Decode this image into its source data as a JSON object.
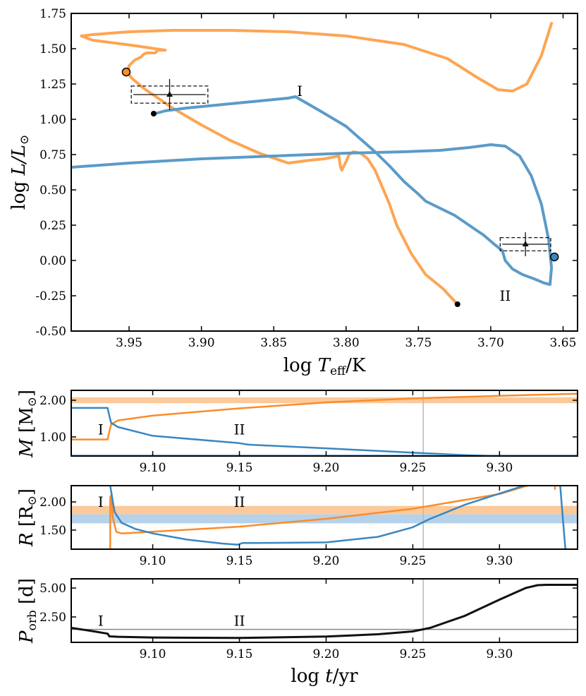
{
  "colors": {
    "orange": "#fa8c2a",
    "orange_track": "#fda553",
    "blue": "#3a87c0",
    "blue_track": "#5b9bc8",
    "orange_band": "#fcc99a",
    "blue_band": "#b6d1ea",
    "black": "#111111",
    "gray_line": "#b8b8b8"
  },
  "chart_data": [
    {
      "type": "line",
      "title": "",
      "xlabel": "log T_eff/K",
      "xlabel_parts": {
        "pre": "log ",
        "var": "T",
        "sub": "eff",
        "post": "/K"
      },
      "ylabel": "log L/L_sun",
      "ylabel_parts": {
        "pre": "log ",
        "var": "L/L",
        "sym": "⊙"
      },
      "xlim": [
        3.99,
        3.64
      ],
      "ylim": [
        -0.5,
        1.75
      ],
      "xticks": [
        3.95,
        3.9,
        3.85,
        3.8,
        3.75,
        3.7,
        3.65
      ],
      "xtick_labels": [
        "3.95",
        "3.90",
        "3.85",
        "3.80",
        "3.75",
        "3.70",
        "3.65"
      ],
      "yticks": [
        -0.5,
        -0.25,
        0.0,
        0.25,
        0.5,
        0.75,
        1.0,
        1.25,
        1.5,
        1.75
      ],
      "ytick_labels": [
        "-0.50",
        "-0.25",
        "0.00",
        "0.25",
        "0.50",
        "0.75",
        "1.00",
        "1.25",
        "1.50",
        "1.75"
      ],
      "series": [
        {
          "name": "orange track",
          "x": [
            3.723,
            3.733,
            3.745,
            3.755,
            3.765,
            3.77,
            3.775,
            3.78,
            3.785,
            3.79,
            3.795,
            3.798,
            3.8,
            3.802,
            3.803,
            3.804,
            3.805,
            3.815,
            3.825,
            3.84,
            3.86,
            3.88,
            3.9,
            3.92,
            3.94,
            3.948,
            3.951,
            3.95,
            3.946,
            3.942,
            3.94,
            3.938,
            3.932,
            3.93,
            3.925,
            3.932,
            3.945,
            3.96,
            3.975,
            3.983,
            3.975,
            3.95,
            3.92,
            3.88,
            3.84,
            3.8,
            3.76,
            3.73,
            3.71,
            3.695,
            3.685,
            3.675,
            3.665,
            3.658
          ],
          "y": [
            -0.31,
            -0.2,
            -0.1,
            0.05,
            0.25,
            0.4,
            0.52,
            0.64,
            0.72,
            0.76,
            0.77,
            0.75,
            0.7,
            0.66,
            0.64,
            0.67,
            0.74,
            0.72,
            0.71,
            0.69,
            0.76,
            0.85,
            0.96,
            1.08,
            1.22,
            1.29,
            1.33,
            1.38,
            1.42,
            1.44,
            1.46,
            1.47,
            1.47,
            1.49,
            1.49,
            1.5,
            1.52,
            1.54,
            1.56,
            1.59,
            1.6,
            1.62,
            1.63,
            1.63,
            1.62,
            1.59,
            1.53,
            1.43,
            1.3,
            1.21,
            1.2,
            1.25,
            1.45,
            1.68
          ]
        },
        {
          "name": "blue track",
          "x": [
            3.932,
            3.925,
            3.91,
            3.89,
            3.87,
            3.85,
            3.84,
            3.835,
            3.818,
            3.8,
            3.79,
            3.78,
            3.77,
            3.76,
            3.75,
            3.745,
            3.735,
            3.725,
            3.715,
            3.705,
            3.697,
            3.692,
            3.69,
            3.685,
            3.678,
            3.67,
            3.663,
            3.659,
            3.658,
            3.66,
            3.665,
            3.672,
            3.68,
            3.69,
            3.7,
            3.715,
            3.735,
            3.76,
            3.8,
            3.85,
            3.9,
            3.95,
            3.99
          ],
          "y": [
            1.04,
            1.06,
            1.08,
            1.1,
            1.12,
            1.14,
            1.15,
            1.16,
            1.06,
            0.95,
            0.86,
            0.77,
            0.67,
            0.56,
            0.47,
            0.42,
            0.37,
            0.32,
            0.25,
            0.18,
            0.11,
            0.07,
            0.0,
            -0.06,
            -0.1,
            -0.13,
            -0.16,
            -0.17,
            -0.05,
            0.15,
            0.4,
            0.6,
            0.74,
            0.81,
            0.82,
            0.8,
            0.78,
            0.77,
            0.76,
            0.74,
            0.72,
            0.69,
            0.66
          ]
        }
      ],
      "endpoint_markers": [
        {
          "x": 3.952,
          "y": 1.335,
          "type": "orange circle"
        },
        {
          "x": 3.656,
          "y": 0.025,
          "type": "blue circle"
        },
        {
          "x": 3.933,
          "y": 1.04,
          "type": "black dot"
        },
        {
          "x": 3.723,
          "y": -0.31,
          "type": "black dot"
        }
      ],
      "observations": [
        {
          "x": 3.922,
          "y": 1.175,
          "xerr": 0.025,
          "yerr": 0.11
        },
        {
          "x": 3.676,
          "y": 0.115,
          "xerr": 0.016,
          "yerr": 0.085
        }
      ],
      "annotations": [
        {
          "text": "I",
          "x": 3.832,
          "y": 1.2
        },
        {
          "text": "II",
          "x": 3.69,
          "y": -0.25
        }
      ]
    },
    {
      "type": "line",
      "xlabel": "",
      "ylabel": "M [M_sun]",
      "ylabel_parts": {
        "var": "M",
        "unit": "[M",
        "sym": "⊙",
        "close": "]"
      },
      "xlim": [
        9.053,
        9.345
      ],
      "ylim": [
        0.48,
        2.27
      ],
      "xticks": [
        9.1,
        9.15,
        9.2,
        9.25,
        9.3
      ],
      "xtick_labels": [
        "9.10",
        "9.15",
        "9.20",
        "9.25",
        "9.30"
      ],
      "yticks": [
        1.0,
        2.0
      ],
      "ytick_labels": [
        "1.00",
        "2.00"
      ],
      "bands": [
        {
          "color": "orange",
          "y0": 1.92,
          "y1": 2.08
        },
        {
          "color": "blue",
          "y0": 0.38,
          "y1": 0.53
        }
      ],
      "vline": 9.256,
      "series": [
        {
          "name": "orange",
          "x": [
            9.053,
            9.074,
            9.075,
            9.076,
            9.08,
            9.1,
            9.15,
            9.2,
            9.25,
            9.3,
            9.345
          ],
          "y": [
            0.93,
            0.93,
            1.15,
            1.34,
            1.45,
            1.58,
            1.78,
            1.94,
            2.05,
            2.12,
            2.18
          ]
        },
        {
          "name": "blue",
          "x": [
            9.053,
            9.074,
            9.075,
            9.076,
            9.08,
            9.1,
            9.15,
            9.155,
            9.2,
            9.25,
            9.3,
            9.345
          ],
          "y": [
            1.79,
            1.79,
            1.57,
            1.38,
            1.27,
            1.03,
            0.83,
            0.79,
            0.69,
            0.57,
            0.46,
            0.42
          ]
        }
      ],
      "annotations": [
        {
          "text": "I",
          "x": 9.07,
          "y": 1.2
        },
        {
          "text": "II",
          "x": 9.15,
          "y": 1.2
        }
      ]
    },
    {
      "type": "line",
      "xlabel": "",
      "ylabel": "R [R_sun]",
      "ylabel_parts": {
        "var": "R",
        "unit": "[R",
        "sym": "⊙",
        "close": "]"
      },
      "xlim": [
        9.053,
        9.345
      ],
      "ylim": [
        1.16,
        2.29
      ],
      "xticks": [
        9.1,
        9.15,
        9.2,
        9.25,
        9.3
      ],
      "xtick_labels": [
        "9.10",
        "9.15",
        "9.20",
        "9.25",
        "9.30"
      ],
      "yticks": [
        1.5,
        2.0
      ],
      "ytick_labels": [
        "1.50",
        "2.00"
      ],
      "bands": [
        {
          "color": "orange",
          "y0": 1.78,
          "y1": 1.93
        },
        {
          "color": "blue",
          "y0": 1.62,
          "y1": 1.78
        }
      ],
      "vline": 9.256,
      "series": [
        {
          "name": "orange",
          "x": [
            9.0755,
            9.0755,
            9.076,
            9.077,
            9.079,
            9.082,
            9.1,
            9.15,
            9.2,
            9.25,
            9.3,
            9.316
          ],
          "y": [
            1.16,
            2.08,
            2.12,
            1.72,
            1.47,
            1.44,
            1.47,
            1.56,
            1.7,
            1.88,
            2.14,
            2.29
          ]
        },
        {
          "name": "orange (second branch)",
          "x": [
            9.332,
            9.332
          ],
          "y": [
            2.23,
            2.29
          ]
        },
        {
          "name": "blue",
          "x": [
            9.0755,
            9.078,
            9.082,
            9.09,
            9.1,
            9.12,
            9.14,
            9.149,
            9.152,
            9.16,
            9.2,
            9.23,
            9.25,
            9.26,
            9.28,
            9.3,
            9.314
          ],
          "y": [
            2.29,
            1.82,
            1.63,
            1.52,
            1.44,
            1.33,
            1.26,
            1.24,
            1.27,
            1.27,
            1.28,
            1.38,
            1.55,
            1.7,
            1.95,
            2.15,
            2.29
          ]
        },
        {
          "name": "blue (second branch)",
          "x": [
            9.335,
            9.3365,
            9.338
          ],
          "y": [
            2.29,
            1.72,
            1.16
          ]
        }
      ],
      "annotations": [
        {
          "text": "I",
          "x": 9.07,
          "y": 2.0
        },
        {
          "text": "II",
          "x": 9.15,
          "y": 2.0
        }
      ]
    },
    {
      "type": "line",
      "xlabel": "log t/yr",
      "xlabel_parts": {
        "pre": "log ",
        "var": "t",
        "post": "/yr"
      },
      "ylabel": "P_orb [d]",
      "ylabel_parts": {
        "var": "P",
        "sub": "orb",
        "unit": " [d]"
      },
      "xlim": [
        9.053,
        9.345
      ],
      "ylim": [
        0.3,
        5.8
      ],
      "xticks": [
        9.1,
        9.15,
        9.2,
        9.25,
        9.3
      ],
      "xtick_labels": [
        "9.10",
        "9.15",
        "9.20",
        "9.25",
        "9.30"
      ],
      "yticks": [
        2.5,
        5.0
      ],
      "ytick_labels": [
        "2.50",
        "5.00"
      ],
      "hline": 1.42,
      "vline": 9.256,
      "series": [
        {
          "name": "orbital period",
          "x": [
            9.053,
            9.065,
            9.074,
            9.075,
            9.08,
            9.1,
            9.15,
            9.2,
            9.23,
            9.25,
            9.26,
            9.28,
            9.3,
            9.315,
            9.322,
            9.327,
            9.345
          ],
          "y": [
            1.55,
            1.28,
            1.05,
            0.82,
            0.78,
            0.72,
            0.68,
            0.8,
            1.0,
            1.25,
            1.55,
            2.6,
            4.0,
            5.0,
            5.25,
            5.28,
            5.28
          ]
        }
      ],
      "annotations": [
        {
          "text": "I",
          "x": 9.07,
          "y": 2.15
        },
        {
          "text": "II",
          "x": 9.15,
          "y": 2.15
        }
      ]
    }
  ]
}
